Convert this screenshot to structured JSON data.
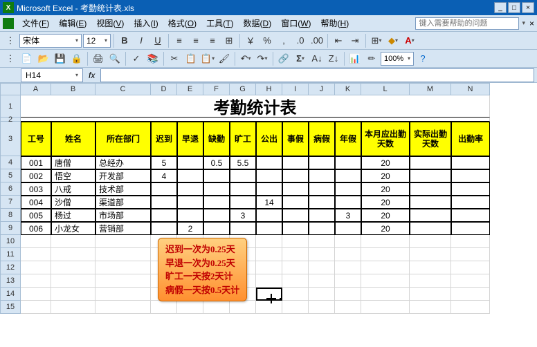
{
  "window": {
    "title": "Microsoft Excel - 考勤统计表.xls"
  },
  "menu": {
    "file": "文件",
    "file_u": "F",
    "edit": "编辑",
    "edit_u": "E",
    "view": "视图",
    "view_u": "V",
    "insert": "插入",
    "insert_u": "I",
    "format": "格式",
    "format_u": "O",
    "tools": "工具",
    "tools_u": "T",
    "data": "数据",
    "data_u": "D",
    "window": "窗口",
    "window_u": "W",
    "help": "帮助",
    "help_u": "H",
    "helpbox": "键入需要帮助的问题"
  },
  "toolbar": {
    "font": "宋体",
    "size": "12",
    "zoom": "100%"
  },
  "namebox": "H14",
  "cols": {
    "A": 44,
    "B": 64,
    "C": 80,
    "D": 38,
    "E": 38,
    "F": 38,
    "G": 38,
    "H": 38,
    "I": 38,
    "J": 38,
    "K": 38,
    "L": 70,
    "M": 60,
    "N": 56
  },
  "sheet_title": "考勤统计表",
  "headers": [
    "工号",
    "姓名",
    "所在部门",
    "迟到",
    "早退",
    "缺勤",
    "旷工",
    "公出",
    "事假",
    "病假",
    "年假",
    "本月应出勤天数",
    "实际出勤天数",
    "出勤率"
  ],
  "rows": [
    {
      "id": "001",
      "name": "唐僧",
      "dept": "总经办",
      "late": "5",
      "early": "",
      "absent": "0.5",
      "skip": "5.5",
      "out": "",
      "shi": "",
      "bing": "",
      "nian": "",
      "due": "20",
      "actual": "",
      "rate": ""
    },
    {
      "id": "002",
      "name": "悟空",
      "dept": "开发部",
      "late": "4",
      "early": "",
      "absent": "",
      "skip": "",
      "out": "",
      "shi": "",
      "bing": "",
      "nian": "",
      "due": "20",
      "actual": "",
      "rate": ""
    },
    {
      "id": "003",
      "name": "八戒",
      "dept": "技术部",
      "late": "",
      "early": "",
      "absent": "",
      "skip": "",
      "out": "",
      "shi": "",
      "bing": "",
      "nian": "",
      "due": "20",
      "actual": "",
      "rate": ""
    },
    {
      "id": "004",
      "name": "沙僧",
      "dept": "渠道部",
      "late": "",
      "early": "",
      "absent": "",
      "skip": "",
      "out": "14",
      "shi": "",
      "bing": "",
      "nian": "",
      "due": "20",
      "actual": "",
      "rate": ""
    },
    {
      "id": "005",
      "name": "杨过",
      "dept": "市场部",
      "late": "",
      "early": "",
      "absent": "",
      "skip": "3",
      "out": "",
      "shi": "",
      "bing": "",
      "nian": "3",
      "due": "20",
      "actual": "",
      "rate": ""
    },
    {
      "id": "006",
      "name": "小龙女",
      "dept": "营销部",
      "late": "",
      "early": "2",
      "absent": "",
      "skip": "",
      "out": "",
      "shi": "",
      "bing": "",
      "nian": "",
      "due": "20",
      "actual": "",
      "rate": ""
    }
  ],
  "note": [
    "迟到一次为0.25天",
    "早退一次为0.25天",
    "旷工一天按2天计",
    "病假一天按0.5天计"
  ],
  "row_h": {
    "title": 32,
    "header": 50,
    "data": 19,
    "empty": 19
  },
  "colors": {
    "header_bg": "#ffff00",
    "note_text": "#c00000"
  }
}
